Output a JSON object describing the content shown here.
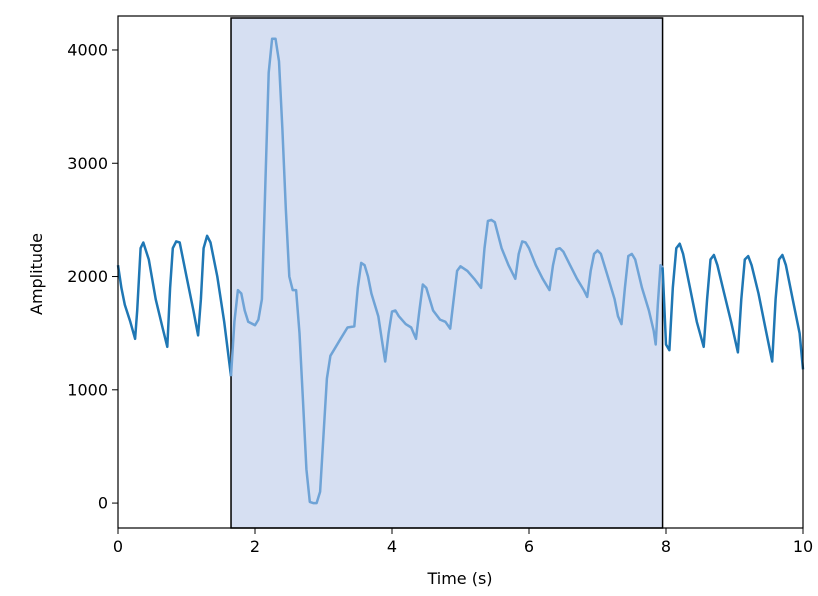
{
  "chart_data": {
    "type": "line",
    "title": "",
    "xlabel": "Time (s)",
    "ylabel": "Amplitude",
    "xlim": [
      0,
      10
    ],
    "ylim": [
      -220,
      4300
    ],
    "x_ticks": [
      0,
      2,
      4,
      6,
      8,
      10
    ],
    "x_tick_labels": [
      "0",
      "2",
      "4",
      "6",
      "8",
      "10"
    ],
    "y_ticks": [
      0,
      1000,
      2000,
      3000,
      4000
    ],
    "y_tick_labels": [
      "0",
      "1000",
      "2000",
      "3000",
      "4000"
    ],
    "grid": false,
    "legend": "none",
    "highlight_region": {
      "x_start": 1.65,
      "x_end": 7.95,
      "color": "#d6dff2",
      "edge_color": "#000000"
    },
    "series": [
      {
        "color": "#1f77b4",
        "points": [
          [
            0.0,
            2100
          ],
          [
            0.05,
            1900
          ],
          [
            0.1,
            1750
          ],
          [
            0.18,
            1600
          ],
          [
            0.25,
            1450
          ],
          [
            0.28,
            1700
          ],
          [
            0.33,
            2250
          ],
          [
            0.37,
            2300
          ],
          [
            0.45,
            2150
          ],
          [
            0.55,
            1800
          ],
          [
            0.65,
            1550
          ],
          [
            0.72,
            1380
          ],
          [
            0.76,
            1900
          ],
          [
            0.8,
            2250
          ],
          [
            0.85,
            2310
          ],
          [
            0.9,
            2300
          ],
          [
            1.0,
            2000
          ],
          [
            1.1,
            1700
          ],
          [
            1.17,
            1480
          ],
          [
            1.21,
            1800
          ],
          [
            1.25,
            2250
          ],
          [
            1.3,
            2360
          ],
          [
            1.35,
            2300
          ],
          [
            1.45,
            2000
          ],
          [
            1.55,
            1600
          ],
          [
            1.65,
            1120
          ]
        ]
      },
      {
        "color": "#6fa3d6",
        "points": [
          [
            1.65,
            1120
          ],
          [
            1.7,
            1600
          ],
          [
            1.75,
            1880
          ],
          [
            1.8,
            1850
          ],
          [
            1.85,
            1700
          ],
          [
            1.9,
            1600
          ],
          [
            2.0,
            1570
          ],
          [
            2.05,
            1620
          ],
          [
            2.1,
            1800
          ],
          [
            2.15,
            2800
          ],
          [
            2.2,
            3800
          ],
          [
            2.25,
            4100
          ],
          [
            2.3,
            4100
          ],
          [
            2.35,
            3900
          ],
          [
            2.4,
            3300
          ],
          [
            2.45,
            2600
          ],
          [
            2.5,
            2000
          ],
          [
            2.55,
            1880
          ],
          [
            2.6,
            1880
          ],
          [
            2.65,
            1500
          ],
          [
            2.7,
            900
          ],
          [
            2.75,
            300
          ],
          [
            2.8,
            10
          ],
          [
            2.85,
            0
          ],
          [
            2.9,
            0
          ],
          [
            2.95,
            100
          ],
          [
            3.0,
            600
          ],
          [
            3.05,
            1100
          ],
          [
            3.1,
            1300
          ],
          [
            3.15,
            1350
          ],
          [
            3.25,
            1450
          ],
          [
            3.35,
            1550
          ],
          [
            3.45,
            1560
          ],
          [
            3.5,
            1900
          ],
          [
            3.55,
            2120
          ],
          [
            3.6,
            2100
          ],
          [
            3.65,
            2000
          ],
          [
            3.7,
            1850
          ],
          [
            3.8,
            1650
          ],
          [
            3.85,
            1450
          ],
          [
            3.9,
            1250
          ],
          [
            3.95,
            1500
          ],
          [
            4.0,
            1690
          ],
          [
            4.05,
            1700
          ],
          [
            4.1,
            1650
          ],
          [
            4.2,
            1580
          ],
          [
            4.28,
            1550
          ],
          [
            4.35,
            1450
          ],
          [
            4.4,
            1700
          ],
          [
            4.45,
            1930
          ],
          [
            4.5,
            1900
          ],
          [
            4.6,
            1700
          ],
          [
            4.7,
            1620
          ],
          [
            4.78,
            1600
          ],
          [
            4.85,
            1540
          ],
          [
            4.9,
            1800
          ],
          [
            4.95,
            2050
          ],
          [
            5.0,
            2090
          ],
          [
            5.1,
            2050
          ],
          [
            5.2,
            1980
          ],
          [
            5.3,
            1900
          ],
          [
            5.35,
            2250
          ],
          [
            5.4,
            2490
          ],
          [
            5.45,
            2500
          ],
          [
            5.5,
            2480
          ],
          [
            5.6,
            2250
          ],
          [
            5.7,
            2100
          ],
          [
            5.8,
            1980
          ],
          [
            5.85,
            2200
          ],
          [
            5.9,
            2310
          ],
          [
            5.95,
            2300
          ],
          [
            6.0,
            2250
          ],
          [
            6.1,
            2100
          ],
          [
            6.2,
            1980
          ],
          [
            6.3,
            1880
          ],
          [
            6.35,
            2100
          ],
          [
            6.4,
            2240
          ],
          [
            6.45,
            2250
          ],
          [
            6.5,
            2220
          ],
          [
            6.6,
            2100
          ],
          [
            6.7,
            1980
          ],
          [
            6.8,
            1880
          ],
          [
            6.85,
            1820
          ],
          [
            6.9,
            2050
          ],
          [
            6.95,
            2200
          ],
          [
            7.0,
            2230
          ],
          [
            7.05,
            2200
          ],
          [
            7.15,
            2000
          ],
          [
            7.25,
            1800
          ],
          [
            7.3,
            1650
          ],
          [
            7.35,
            1580
          ],
          [
            7.4,
            1900
          ],
          [
            7.45,
            2180
          ],
          [
            7.5,
            2200
          ],
          [
            7.55,
            2150
          ],
          [
            7.65,
            1900
          ],
          [
            7.75,
            1700
          ],
          [
            7.82,
            1520
          ],
          [
            7.85,
            1400
          ],
          [
            7.88,
            1750
          ],
          [
            7.92,
            2100
          ],
          [
            7.95,
            2080
          ]
        ]
      },
      {
        "color": "#1f77b4",
        "points": [
          [
            7.95,
            2080
          ],
          [
            8.0,
            1400
          ],
          [
            8.05,
            1350
          ],
          [
            8.1,
            1900
          ],
          [
            8.15,
            2250
          ],
          [
            8.2,
            2290
          ],
          [
            8.25,
            2200
          ],
          [
            8.35,
            1900
          ],
          [
            8.45,
            1600
          ],
          [
            8.55,
            1380
          ],
          [
            8.6,
            1800
          ],
          [
            8.65,
            2150
          ],
          [
            8.7,
            2190
          ],
          [
            8.75,
            2100
          ],
          [
            8.85,
            1850
          ],
          [
            8.95,
            1600
          ],
          [
            9.05,
            1330
          ],
          [
            9.1,
            1800
          ],
          [
            9.15,
            2150
          ],
          [
            9.2,
            2180
          ],
          [
            9.25,
            2100
          ],
          [
            9.35,
            1850
          ],
          [
            9.45,
            1550
          ],
          [
            9.55,
            1250
          ],
          [
            9.6,
            1800
          ],
          [
            9.65,
            2150
          ],
          [
            9.7,
            2190
          ],
          [
            9.75,
            2100
          ],
          [
            9.85,
            1800
          ],
          [
            9.95,
            1500
          ],
          [
            10.0,
            1180
          ]
        ]
      }
    ]
  }
}
